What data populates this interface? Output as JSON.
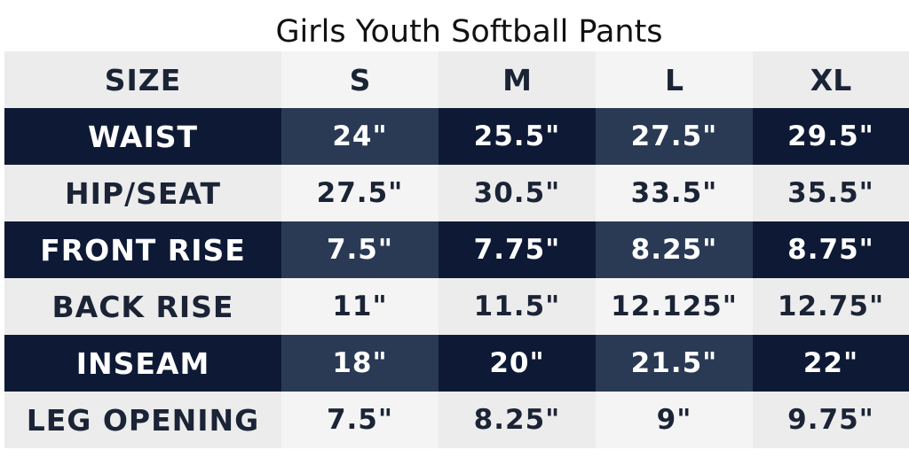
{
  "title": "Girls Youth Softball Pants",
  "table": {
    "header": [
      "SIZE",
      "S",
      "M",
      "L",
      "XL"
    ],
    "rows": [
      {
        "label": "WAIST",
        "values": [
          "24\"",
          "25.5\"",
          "27.5\"",
          "29.5\""
        ]
      },
      {
        "label": "HIP/SEAT",
        "values": [
          "27.5\"",
          "30.5\"",
          "33.5\"",
          "35.5\""
        ]
      },
      {
        "label": "FRONT RISE",
        "values": [
          "7.5\"",
          "7.75\"",
          "8.25\"",
          "8.75\""
        ]
      },
      {
        "label": "BACK RISE",
        "values": [
          "11\"",
          "11.5\"",
          "12.125\"",
          "12.75\""
        ]
      },
      {
        "label": "INSEAM",
        "values": [
          "18\"",
          "20\"",
          "21.5\"",
          "22\""
        ]
      },
      {
        "label": "LEG OPENING",
        "values": [
          "7.5\"",
          "8.25\"",
          "9\"",
          "9.75\""
        ]
      }
    ]
  },
  "colors": {
    "dark_row": "#0e1a35",
    "dark_row_alt": "#2a3a55",
    "light_row": "#ececec",
    "light_row_alt": "#f4f4f4",
    "light_text": "#1b2436"
  }
}
